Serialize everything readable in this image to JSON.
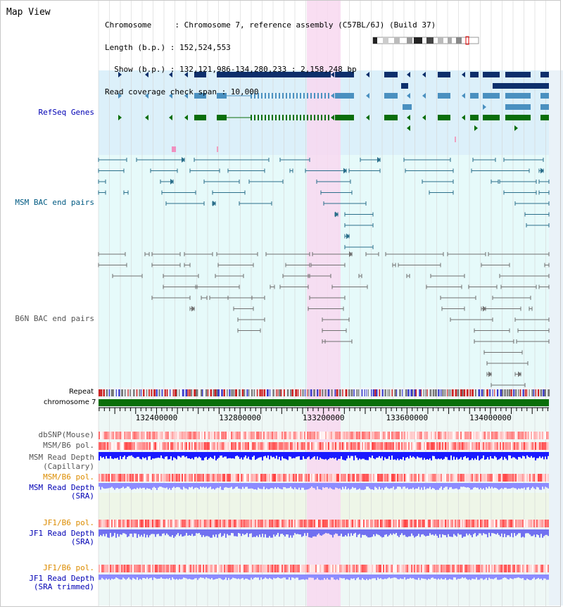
{
  "title": "Map View",
  "header": {
    "line1": "Chromosome     : Chromosome 7, reference assembly (C57BL/6J) (Build 37)",
    "line2": "Length (b.p.) : 152,524,553",
    "line3": "  Show (b.p.) : 132,121,986-134,280,233 : 2,158,248 bp",
    "line4": "Read coverage check span : 10,000"
  },
  "tracks": {
    "refseq": "RefSeq Genes",
    "msm_bac": "MSM BAC end pairs",
    "b6n_bac": "B6N BAC end pairs",
    "repeat": "Repeat",
    "chromosome": "chromosome 7"
  },
  "ruler": {
    "ticks": [
      "132400000",
      "132800000",
      "133200000",
      "133600000",
      "134000000"
    ],
    "tick_values": [
      132400000,
      132800000,
      133200000,
      133600000,
      134000000
    ],
    "start": 132121986,
    "end": 134280233
  },
  "data_tracks": {
    "dbsnp": "dbSNP(Mouse)",
    "msm_b6_pol": "MSM/B6 pol.",
    "msm_depth_cap_1": "MSM Read Depth",
    "msm_depth_cap_2": "(Capillary)",
    "msm_b6_pol_2": "MSM/B6 pol.",
    "msm_depth_sra_1": "MSM Read Depth",
    "msm_depth_sra_2": "(SRA)",
    "jf1_b6_pol": "JF1/B6 pol.",
    "jf1_depth_sra_1": "JF1 Read Depth",
    "jf1_depth_sra_2": "(SRA)",
    "jf1_b6_pol_2": "JF1/B6 pol.",
    "jf1_depth_trim_1": "JF1 Read Depth",
    "jf1_depth_trim_2": "(SRA trimmed)"
  },
  "colors": {
    "refseq_bg": "#dcf0fa",
    "msm_bg": "#e6fafa",
    "highlight": "#f8d8f0",
    "dark_blue": "#0d2f6b",
    "mid_blue": "#4a90c0",
    "green": "#0a6e0a",
    "msm_line": "#2a6e8a",
    "b6n_line": "#707070",
    "chromosome_bar": "#0a6e0a",
    "label_blue": "#0000b4",
    "label_orange": "#dc8c00",
    "label_teal": "#005a82",
    "label_gray": "#555555"
  }
}
